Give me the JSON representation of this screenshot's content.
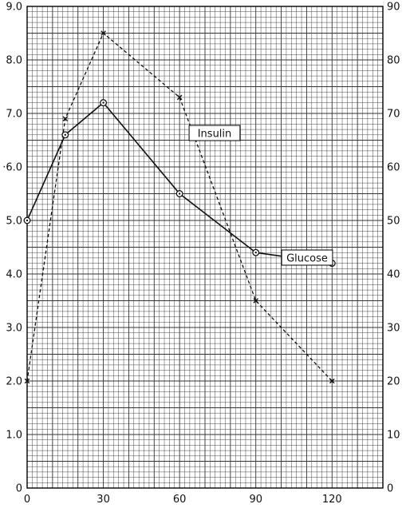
{
  "chart_data": {
    "type": "line",
    "title": "",
    "xlabel": "",
    "ylabel_left": "",
    "ylabel_right": "",
    "xlim": [
      0,
      140
    ],
    "ylim_left": [
      0,
      9.0
    ],
    "ylim_right": [
      0,
      90
    ],
    "x_ticks": [
      "0",
      "30",
      "60",
      "90",
      "120"
    ],
    "y_left_ticks": [
      "0",
      "1.0",
      "2.0",
      "3.0",
      "4.0",
      "5.0",
      "·6.0",
      "7.0",
      "8.0",
      "9.0"
    ],
    "y_right_ticks": [
      "0",
      "10",
      "20",
      "30",
      "40",
      "50",
      "60",
      "70",
      "80",
      "90"
    ],
    "grid": true,
    "series": [
      {
        "name": "Glucose",
        "axis": "left",
        "style": "solid",
        "marker": "circle",
        "x": [
          0,
          15,
          30,
          60,
          90,
          120
        ],
        "y": [
          5.0,
          6.6,
          7.2,
          5.5,
          4.4,
          4.2
        ]
      },
      {
        "name": "Insulin",
        "axis": "right",
        "style": "dashed",
        "marker": "x",
        "x": [
          0,
          15,
          30,
          60,
          90,
          120
        ],
        "y": [
          20,
          69,
          85,
          73,
          35,
          20
        ]
      }
    ],
    "colors": {
      "line": "#111111",
      "grid": "#333333",
      "background": "#ffffff"
    }
  }
}
